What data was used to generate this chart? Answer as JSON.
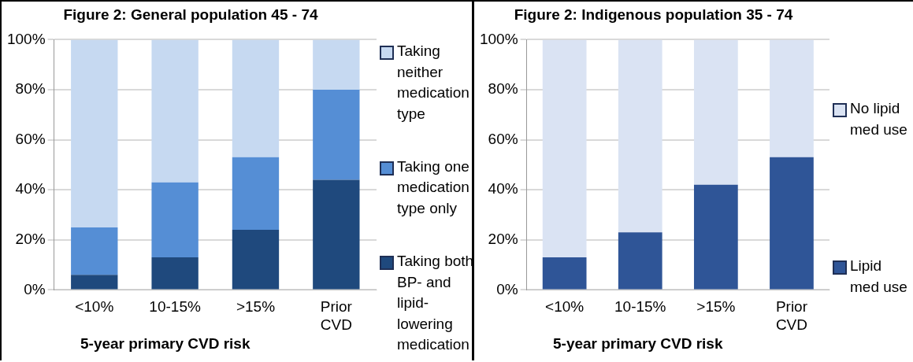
{
  "chart_data": [
    {
      "type": "bar",
      "title": "Figure 2: General population 45 - 74",
      "xlabel": "5-year primary CVD risk",
      "categories": [
        "<10%",
        "10-15%",
        ">15%",
        "Prior CVD"
      ],
      "stacked": true,
      "ylim": [
        0,
        100
      ],
      "yticks": [
        {
          "value": 0,
          "label": "0%"
        },
        {
          "value": 20,
          "label": "20%"
        },
        {
          "value": 40,
          "label": "40%"
        },
        {
          "value": 60,
          "label": "60%"
        },
        {
          "value": 80,
          "label": "80%"
        },
        {
          "value": 100,
          "label": "100%"
        }
      ],
      "grid": "y",
      "legend": "right",
      "series": [
        {
          "name": "Taking both BP- and lipid-lowering medication",
          "color": "#1f497d",
          "values": [
            6,
            13,
            24,
            44
          ]
        },
        {
          "name": "Taking one medication type only",
          "color": "#558ed5",
          "values": [
            19,
            30,
            29,
            36
          ]
        },
        {
          "name": "Taking neither medication type",
          "color": "#c6d9f1",
          "values": [
            75,
            57,
            47,
            20
          ]
        }
      ]
    },
    {
      "type": "bar",
      "title": "Figure 2: Indigenous population 35 - 74",
      "xlabel": "5-year primary CVD risk",
      "categories": [
        "<10%",
        "10-15%",
        ">15%",
        "Prior CVD"
      ],
      "stacked": true,
      "ylim": [
        0,
        100
      ],
      "yticks": [
        {
          "value": 0,
          "label": "0%"
        },
        {
          "value": 20,
          "label": "20%"
        },
        {
          "value": 40,
          "label": "40%"
        },
        {
          "value": 60,
          "label": "60%"
        },
        {
          "value": 80,
          "label": "80%"
        },
        {
          "value": 100,
          "label": "100%"
        }
      ],
      "grid": "y",
      "legend": "right",
      "series": [
        {
          "name": "Lipid med use",
          "color": "#2f5597",
          "values": [
            13,
            23,
            42,
            53
          ]
        },
        {
          "name": "No lipid med use",
          "color": "#dae3f3",
          "values": [
            87,
            77,
            58,
            47
          ]
        }
      ]
    }
  ]
}
